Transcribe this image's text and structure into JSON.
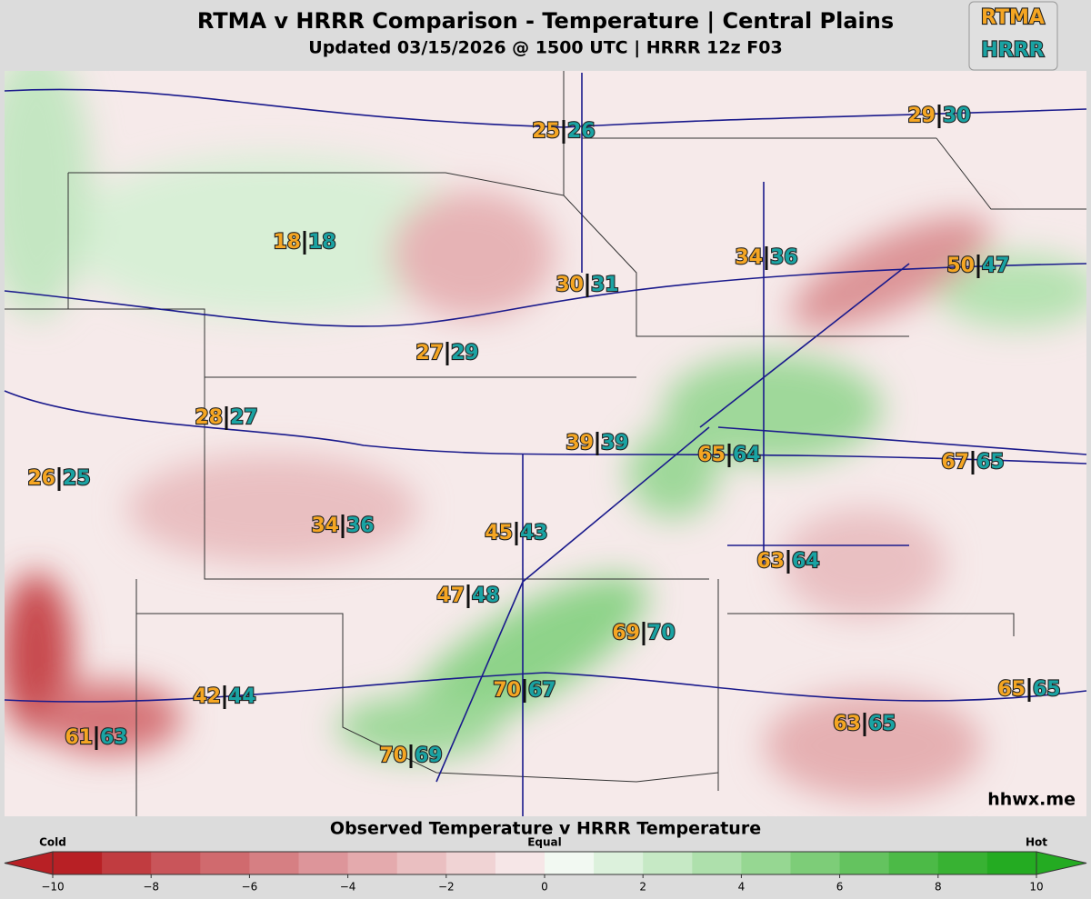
{
  "header": {
    "title": "RTMA v HRRR Comparison - Temperature | Central Plains",
    "subtitle": "Updated 03/15/2026 @ 1500 UTC | HRRR 12z F03"
  },
  "legend": {
    "rtma": "RTMA",
    "hrrr": "HRRR"
  },
  "stations": [
    {
      "rtma": 25,
      "hrrr": 26
    },
    {
      "rtma": 29,
      "hrrr": 30
    },
    {
      "rtma": 18,
      "hrrr": 18
    },
    {
      "rtma": 34,
      "hrrr": 36
    },
    {
      "rtma": 50,
      "hrrr": 47
    },
    {
      "rtma": 30,
      "hrrr": 31
    },
    {
      "rtma": 27,
      "hrrr": 29
    },
    {
      "rtma": 28,
      "hrrr": 27
    },
    {
      "rtma": 39,
      "hrrr": 39
    },
    {
      "rtma": 65,
      "hrrr": 64
    },
    {
      "rtma": 67,
      "hrrr": 65
    },
    {
      "rtma": 26,
      "hrrr": 25
    },
    {
      "rtma": 34,
      "hrrr": 36
    },
    {
      "rtma": 45,
      "hrrr": 43
    },
    {
      "rtma": 63,
      "hrrr": 64
    },
    {
      "rtma": 47,
      "hrrr": 48
    },
    {
      "rtma": 69,
      "hrrr": 70
    },
    {
      "rtma": 70,
      "hrrr": 67
    },
    {
      "rtma": 42,
      "hrrr": 44
    },
    {
      "rtma": 63,
      "hrrr": 65
    },
    {
      "rtma": 65,
      "hrrr": 65
    },
    {
      "rtma": 61,
      "hrrr": 63
    },
    {
      "rtma": 70,
      "hrrr": 69
    }
  ],
  "watermark": "hhwx.me",
  "colorbar": {
    "title": "Observed Temperature v HRRR Temperature",
    "low_label": "Cold",
    "mid_label": "Equal",
    "high_label": "Hot",
    "lim": [
      -10,
      10
    ],
    "ticks": [
      {
        "value": -10,
        "label": "−10"
      },
      {
        "value": -8,
        "label": "−8"
      },
      {
        "value": -6,
        "label": "−6"
      },
      {
        "value": -4,
        "label": "−4"
      },
      {
        "value": -2,
        "label": "−2"
      },
      0,
      2,
      4,
      6,
      8,
      10
    ],
    "colors": [
      "#b82025",
      "#c13c40",
      "#c9555a",
      "#d06a6e",
      "#d67f83",
      "#dd959a",
      "#e4aaad",
      "#eabfc1",
      "#f0d3d4",
      "#f6e6e7",
      "#f2f9f2",
      "#dcf1dc",
      "#c6e9c5",
      "#aee0ac",
      "#96d792",
      "#7dcd78",
      "#64c35f",
      "#4cba47",
      "#38b233",
      "#24ab22"
    ]
  }
}
